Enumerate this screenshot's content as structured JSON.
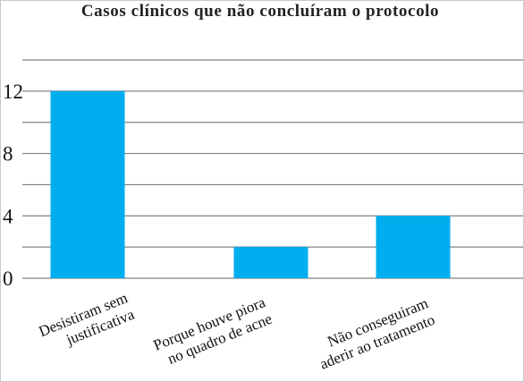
{
  "chart_data": {
    "type": "bar",
    "title": "Casos clínicos que não concluíram o protocolo",
    "categories": [
      [
        "Desistiram sem",
        "justificativa"
      ],
      [
        "Porque houve piora",
        "no quadro de acne"
      ],
      [
        "Não conseguiram",
        "aderir ao tratamento"
      ]
    ],
    "values": [
      12,
      2,
      4
    ],
    "yticks": [
      0,
      4,
      8,
      12
    ],
    "ylim": [
      0,
      14
    ],
    "grid_step": 2,
    "grid": true,
    "bar_color": "#00aeef",
    "xlabel": "",
    "ylabel": ""
  }
}
